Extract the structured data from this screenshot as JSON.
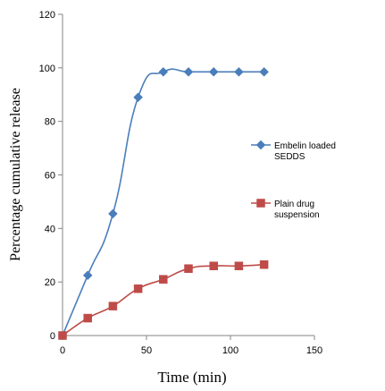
{
  "chart_data": {
    "type": "line",
    "title": "",
    "xlabel": "Time (min)",
    "ylabel": "Percentage cumulative release",
    "xlim": [
      0,
      150
    ],
    "ylim": [
      0,
      120
    ],
    "x_ticks": [
      0,
      50,
      100,
      150
    ],
    "y_ticks": [
      0,
      20,
      40,
      60,
      80,
      100,
      120
    ],
    "grid": false,
    "legend_position": "right",
    "series": [
      {
        "name_lines": [
          "Embelin loaded",
          "SEDDS"
        ],
        "color": "#4A7EBB",
        "marker": "diamond",
        "smooth": true,
        "x": [
          0,
          15,
          30,
          45,
          60,
          75,
          90,
          105,
          120
        ],
        "y": [
          0,
          22.5,
          45.5,
          89,
          98.5,
          98.5,
          98.5,
          98.5,
          98.5
        ]
      },
      {
        "name_lines": [
          "Plain drug",
          "suspension"
        ],
        "color": "#BE4B48",
        "marker": "square",
        "smooth": true,
        "x": [
          0,
          15,
          30,
          45,
          60,
          75,
          90,
          105,
          120
        ],
        "y": [
          0,
          6.5,
          11,
          17.5,
          21,
          25,
          26,
          26,
          26.5
        ]
      }
    ]
  }
}
